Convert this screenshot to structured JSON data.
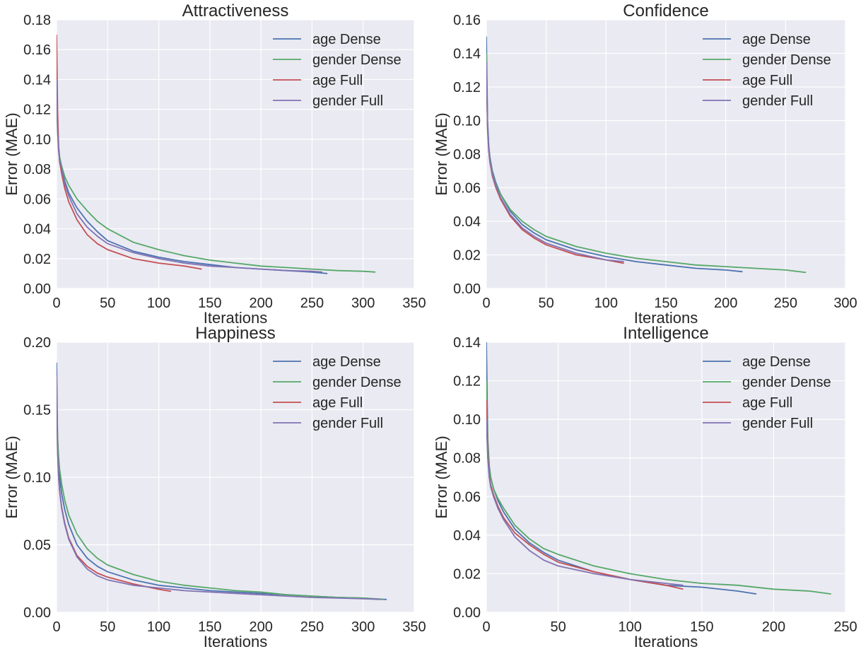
{
  "chart_data": [
    {
      "type": "line",
      "title": "Attractiveness",
      "xlabel": "Iterations",
      "ylabel": "Error (MAE)",
      "xlim": [
        0,
        350
      ],
      "ylim": [
        0,
        0.18
      ],
      "xticks": [
        0,
        50,
        100,
        150,
        200,
        250,
        300,
        350
      ],
      "yticks": [
        0.0,
        0.02,
        0.04,
        0.06,
        0.08,
        0.1,
        0.12,
        0.14,
        0.16,
        0.18
      ],
      "ytick_decimals": 2,
      "grid": true,
      "legend": "top-right",
      "series": [
        {
          "name": "age Dense",
          "color": "#4c72b0",
          "x": [
            0,
            1,
            2,
            3,
            5,
            8,
            12,
            20,
            30,
            40,
            50,
            75,
            100,
            125,
            150,
            175,
            200,
            225,
            250,
            265
          ],
          "y": [
            0.145,
            0.11,
            0.095,
            0.088,
            0.081,
            0.072,
            0.064,
            0.054,
            0.045,
            0.038,
            0.032,
            0.025,
            0.021,
            0.018,
            0.016,
            0.014,
            0.013,
            0.012,
            0.011,
            0.01
          ]
        },
        {
          "name": "gender Dense",
          "color": "#55a868",
          "x": [
            0,
            1,
            2,
            3,
            5,
            8,
            12,
            20,
            30,
            40,
            50,
            75,
            100,
            125,
            150,
            175,
            200,
            225,
            250,
            275,
            300,
            312
          ],
          "y": [
            0.135,
            0.105,
            0.093,
            0.088,
            0.082,
            0.075,
            0.069,
            0.06,
            0.052,
            0.045,
            0.04,
            0.031,
            0.026,
            0.022,
            0.019,
            0.017,
            0.015,
            0.014,
            0.013,
            0.012,
            0.0115,
            0.011
          ]
        },
        {
          "name": "age Full",
          "color": "#c44e52",
          "x": [
            0,
            1,
            2,
            3,
            5,
            8,
            12,
            20,
            30,
            40,
            50,
            75,
            100,
            125,
            142
          ],
          "y": [
            0.17,
            0.12,
            0.095,
            0.085,
            0.077,
            0.067,
            0.058,
            0.046,
            0.036,
            0.03,
            0.026,
            0.02,
            0.017,
            0.015,
            0.013
          ]
        },
        {
          "name": "gender Full",
          "color": "#8172b2",
          "x": [
            0,
            1,
            2,
            3,
            5,
            8,
            12,
            20,
            30,
            40,
            50,
            75,
            100,
            125,
            150,
            175,
            200,
            225,
            250,
            260
          ],
          "y": [
            0.14,
            0.108,
            0.092,
            0.086,
            0.08,
            0.07,
            0.062,
            0.05,
            0.041,
            0.035,
            0.03,
            0.024,
            0.02,
            0.017,
            0.015,
            0.014,
            0.013,
            0.012,
            0.0115,
            0.011
          ]
        }
      ]
    },
    {
      "type": "line",
      "title": "Confidence",
      "xlabel": "Iterations",
      "ylabel": "Error (MAE)",
      "xlim": [
        0,
        300
      ],
      "ylim": [
        0,
        0.16
      ],
      "xticks": [
        0,
        50,
        100,
        150,
        200,
        250,
        300
      ],
      "yticks": [
        0.0,
        0.02,
        0.04,
        0.06,
        0.08,
        0.1,
        0.12,
        0.14,
        0.16
      ],
      "ytick_decimals": 2,
      "grid": true,
      "legend": "top-right",
      "series": [
        {
          "name": "age Dense",
          "color": "#4c72b0",
          "x": [
            0,
            1,
            2,
            3,
            5,
            8,
            12,
            20,
            30,
            40,
            50,
            75,
            100,
            125,
            150,
            175,
            200,
            214
          ],
          "y": [
            0.15,
            0.1,
            0.085,
            0.078,
            0.07,
            0.063,
            0.056,
            0.046,
            0.038,
            0.033,
            0.029,
            0.023,
            0.019,
            0.016,
            0.014,
            0.012,
            0.011,
            0.01
          ]
        },
        {
          "name": "gender Dense",
          "color": "#55a868",
          "x": [
            0,
            1,
            2,
            3,
            5,
            8,
            12,
            20,
            30,
            40,
            50,
            75,
            100,
            125,
            150,
            175,
            200,
            225,
            250,
            267
          ],
          "y": [
            0.14,
            0.098,
            0.084,
            0.077,
            0.069,
            0.062,
            0.056,
            0.047,
            0.04,
            0.035,
            0.031,
            0.025,
            0.021,
            0.018,
            0.016,
            0.014,
            0.013,
            0.012,
            0.011,
            0.0095
          ]
        },
        {
          "name": "age Full",
          "color": "#c44e52",
          "x": [
            0,
            1,
            2,
            3,
            5,
            8,
            12,
            20,
            30,
            40,
            50,
            75,
            100,
            115
          ],
          "y": [
            0.13,
            0.095,
            0.082,
            0.075,
            0.067,
            0.06,
            0.053,
            0.043,
            0.035,
            0.03,
            0.026,
            0.02,
            0.017,
            0.015
          ]
        },
        {
          "name": "gender Full",
          "color": "#8172b2",
          "x": [
            0,
            1,
            2,
            3,
            5,
            8,
            12,
            20,
            30,
            40,
            50,
            75,
            100,
            115
          ],
          "y": [
            0.135,
            0.097,
            0.083,
            0.076,
            0.068,
            0.061,
            0.054,
            0.044,
            0.036,
            0.031,
            0.027,
            0.021,
            0.017,
            0.016
          ]
        }
      ]
    },
    {
      "type": "line",
      "title": "Happiness",
      "xlabel": "Iterations",
      "ylabel": "Error (MAE)",
      "xlim": [
        0,
        350
      ],
      "ylim": [
        0,
        0.2
      ],
      "xticks": [
        0,
        50,
        100,
        150,
        200,
        250,
        300,
        350
      ],
      "yticks": [
        0.0,
        0.05,
        0.1,
        0.15,
        0.2
      ],
      "ytick_decimals": 2,
      "grid": true,
      "legend": "top-right",
      "series": [
        {
          "name": "age Dense",
          "color": "#4c72b0",
          "x": [
            0,
            1,
            2,
            3,
            5,
            8,
            12,
            20,
            30,
            40,
            50,
            75,
            100,
            125,
            150,
            175,
            200,
            225,
            250,
            275,
            300,
            323
          ],
          "y": [
            0.185,
            0.13,
            0.11,
            0.1,
            0.088,
            0.076,
            0.065,
            0.05,
            0.04,
            0.034,
            0.03,
            0.024,
            0.02,
            0.018,
            0.016,
            0.015,
            0.014,
            0.013,
            0.012,
            0.011,
            0.0105,
            0.0095
          ]
        },
        {
          "name": "gender Dense",
          "color": "#55a868",
          "x": [
            0,
            1,
            2,
            3,
            5,
            8,
            12,
            20,
            30,
            40,
            50,
            75,
            100,
            125,
            150,
            175,
            200,
            225,
            250,
            275,
            300,
            320
          ],
          "y": [
            0.16,
            0.13,
            0.115,
            0.106,
            0.095,
            0.083,
            0.072,
            0.058,
            0.047,
            0.04,
            0.035,
            0.028,
            0.023,
            0.02,
            0.018,
            0.016,
            0.015,
            0.013,
            0.012,
            0.011,
            0.0105,
            0.0095
          ]
        },
        {
          "name": "age Full",
          "color": "#c44e52",
          "x": [
            0,
            1,
            2,
            3,
            5,
            8,
            12,
            20,
            30,
            40,
            50,
            75,
            100,
            112
          ],
          "y": [
            0.17,
            0.12,
            0.1,
            0.09,
            0.078,
            0.066,
            0.055,
            0.042,
            0.034,
            0.029,
            0.026,
            0.021,
            0.017,
            0.0155
          ]
        },
        {
          "name": "gender Full",
          "color": "#8172b2",
          "x": [
            0,
            1,
            2,
            3,
            5,
            8,
            12,
            20,
            30,
            40,
            50,
            75,
            100,
            125,
            150,
            175,
            200,
            225,
            250,
            275,
            300,
            318
          ],
          "y": [
            0.175,
            0.12,
            0.1,
            0.09,
            0.077,
            0.065,
            0.054,
            0.041,
            0.032,
            0.027,
            0.024,
            0.02,
            0.018,
            0.016,
            0.015,
            0.014,
            0.013,
            0.012,
            0.011,
            0.0105,
            0.01,
            0.0095
          ]
        }
      ]
    },
    {
      "type": "line",
      "title": "Intelligence",
      "xlabel": "Iterations",
      "ylabel": "Error (MAE)",
      "xlim": [
        0,
        250
      ],
      "ylim": [
        0,
        0.14
      ],
      "xticks": [
        0,
        50,
        100,
        150,
        200,
        250
      ],
      "yticks": [
        0.0,
        0.02,
        0.04,
        0.06,
        0.08,
        0.1,
        0.12,
        0.14
      ],
      "ytick_decimals": 2,
      "grid": true,
      "legend": "top-right",
      "series": [
        {
          "name": "age Dense",
          "color": "#4c72b0",
          "x": [
            0,
            1,
            2,
            3,
            5,
            8,
            12,
            20,
            30,
            40,
            50,
            75,
            100,
            125,
            150,
            175,
            188
          ],
          "y": [
            0.14,
            0.09,
            0.076,
            0.07,
            0.064,
            0.058,
            0.052,
            0.043,
            0.036,
            0.031,
            0.027,
            0.021,
            0.017,
            0.014,
            0.013,
            0.011,
            0.0095
          ]
        },
        {
          "name": "gender Dense",
          "color": "#55a868",
          "x": [
            0,
            1,
            2,
            3,
            5,
            8,
            12,
            20,
            30,
            40,
            50,
            75,
            100,
            125,
            150,
            175,
            200,
            225,
            240
          ],
          "y": [
            0.12,
            0.088,
            0.075,
            0.07,
            0.064,
            0.059,
            0.054,
            0.045,
            0.038,
            0.033,
            0.03,
            0.024,
            0.02,
            0.017,
            0.015,
            0.014,
            0.012,
            0.011,
            0.0095
          ]
        },
        {
          "name": "age Full",
          "color": "#c44e52",
          "x": [
            0,
            1,
            2,
            3,
            5,
            8,
            12,
            20,
            30,
            40,
            50,
            75,
            100,
            125,
            137
          ],
          "y": [
            0.11,
            0.082,
            0.071,
            0.066,
            0.061,
            0.055,
            0.049,
            0.041,
            0.035,
            0.03,
            0.026,
            0.021,
            0.017,
            0.014,
            0.012
          ]
        },
        {
          "name": "gender Full",
          "color": "#8172b2",
          "x": [
            0,
            1,
            2,
            3,
            5,
            8,
            12,
            20,
            30,
            40,
            50,
            75,
            100,
            125,
            137
          ],
          "y": [
            0.1,
            0.08,
            0.07,
            0.065,
            0.06,
            0.054,
            0.048,
            0.039,
            0.032,
            0.027,
            0.024,
            0.02,
            0.017,
            0.015,
            0.014
          ]
        }
      ]
    }
  ],
  "style": {
    "plot_background": "#eaeaf2",
    "grid_color": "#ffffff",
    "text_color": "#262626"
  }
}
